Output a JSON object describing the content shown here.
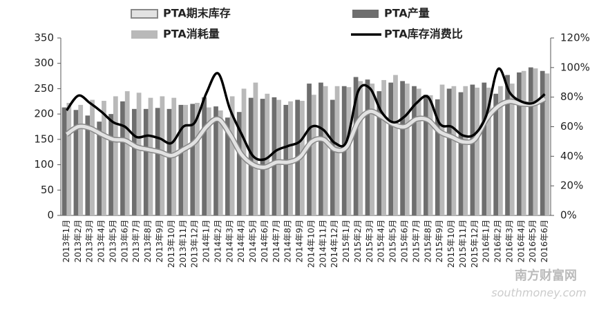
{
  "chart_data": {
    "type": "bar-line",
    "categories": [
      "2013年1月",
      "2013年2月",
      "2013年3月",
      "2013年4月",
      "2013年5月",
      "2013年6月",
      "2013年7月",
      "2013年8月",
      "2013年9月",
      "2013年10月",
      "2013年11月",
      "2013年12月",
      "2014年1月",
      "2014年2月",
      "2014年3月",
      "2014年4月",
      "2014年5月",
      "2014年6月",
      "2014年7月",
      "2014年8月",
      "2014年9月",
      "2014年10月",
      "2014年11月",
      "2014年12月",
      "2015年1月",
      "2015年2月",
      "2015年3月",
      "2015年4月",
      "2015年5月",
      "2015年6月",
      "2015年7月",
      "2015年8月",
      "2015年9月",
      "2015年10月",
      "2015年11月",
      "2015年12月",
      "2016年1月",
      "2016年2月",
      "2016年3月",
      "2016年4月",
      "2016年5月",
      "2016年6月"
    ],
    "series": [
      {
        "name": "PTA期末库存",
        "kind": "line-outlined",
        "color": "#e2e2e2",
        "values": [
          160,
          175,
          172,
          160,
          150,
          148,
          135,
          130,
          125,
          118,
          130,
          145,
          175,
          190,
          160,
          120,
          100,
          95,
          105,
          105,
          115,
          145,
          150,
          130,
          135,
          185,
          205,
          195,
          180,
          175,
          190,
          188,
          165,
          155,
          145,
          150,
          190,
          215,
          225,
          220,
          220,
          230
        ]
      },
      {
        "name": "PTA产量",
        "kind": "bar",
        "color": "#6e6e6e",
        "values": [
          213,
          208,
          197,
          185,
          200,
          225,
          210,
          210,
          212,
          210,
          218,
          220,
          233,
          215,
          193,
          204,
          232,
          230,
          233,
          218,
          228,
          260,
          262,
          228,
          255,
          273,
          268,
          245,
          262,
          265,
          255,
          238,
          229,
          250,
          243,
          258,
          262,
          240,
          277,
          282,
          292,
          285
        ]
      },
      {
        "name": "PTA消耗量",
        "kind": "bar",
        "color": "#b9b9b9",
        "values": [
          222,
          218,
          228,
          226,
          235,
          245,
          242,
          232,
          235,
          232,
          218,
          222,
          213,
          207,
          235,
          250,
          262,
          240,
          228,
          225,
          226,
          238,
          255,
          255,
          253,
          265,
          260,
          267,
          277,
          260,
          250,
          237,
          258,
          255,
          255,
          252,
          252,
          255,
          260,
          285,
          290,
          280
        ]
      },
      {
        "name": "PTA库存消费比",
        "kind": "line",
        "axis": "y2",
        "color": "#000000",
        "values": [
          71,
          81,
          76,
          70,
          63,
          60,
          53,
          54,
          52,
          49,
          60,
          63,
          83,
          96,
          72,
          55,
          40,
          38,
          44,
          47,
          50,
          60,
          58,
          49,
          50,
          84,
          86,
          70,
          63,
          67,
          76,
          80,
          62,
          60,
          54,
          55,
          68,
          99,
          83,
          77,
          76,
          82
        ]
      }
    ],
    "ylim": [
      0,
      350
    ],
    "yticks": [
      0,
      50,
      100,
      150,
      200,
      250,
      300,
      350
    ],
    "y2lim": [
      0,
      120
    ],
    "y2ticks": [
      {
        "value": 0,
        "label": "0%"
      },
      {
        "value": 20,
        "label": "20%"
      },
      {
        "value": 40,
        "label": "40%"
      },
      {
        "value": 60,
        "label": "60%"
      },
      {
        "value": 80,
        "label": "80%"
      },
      {
        "value": 100,
        "label": "100%"
      },
      {
        "value": 120,
        "label": "120%"
      }
    ],
    "watermark": "南方财富网",
    "watermark_sub": "southmoney.com"
  }
}
